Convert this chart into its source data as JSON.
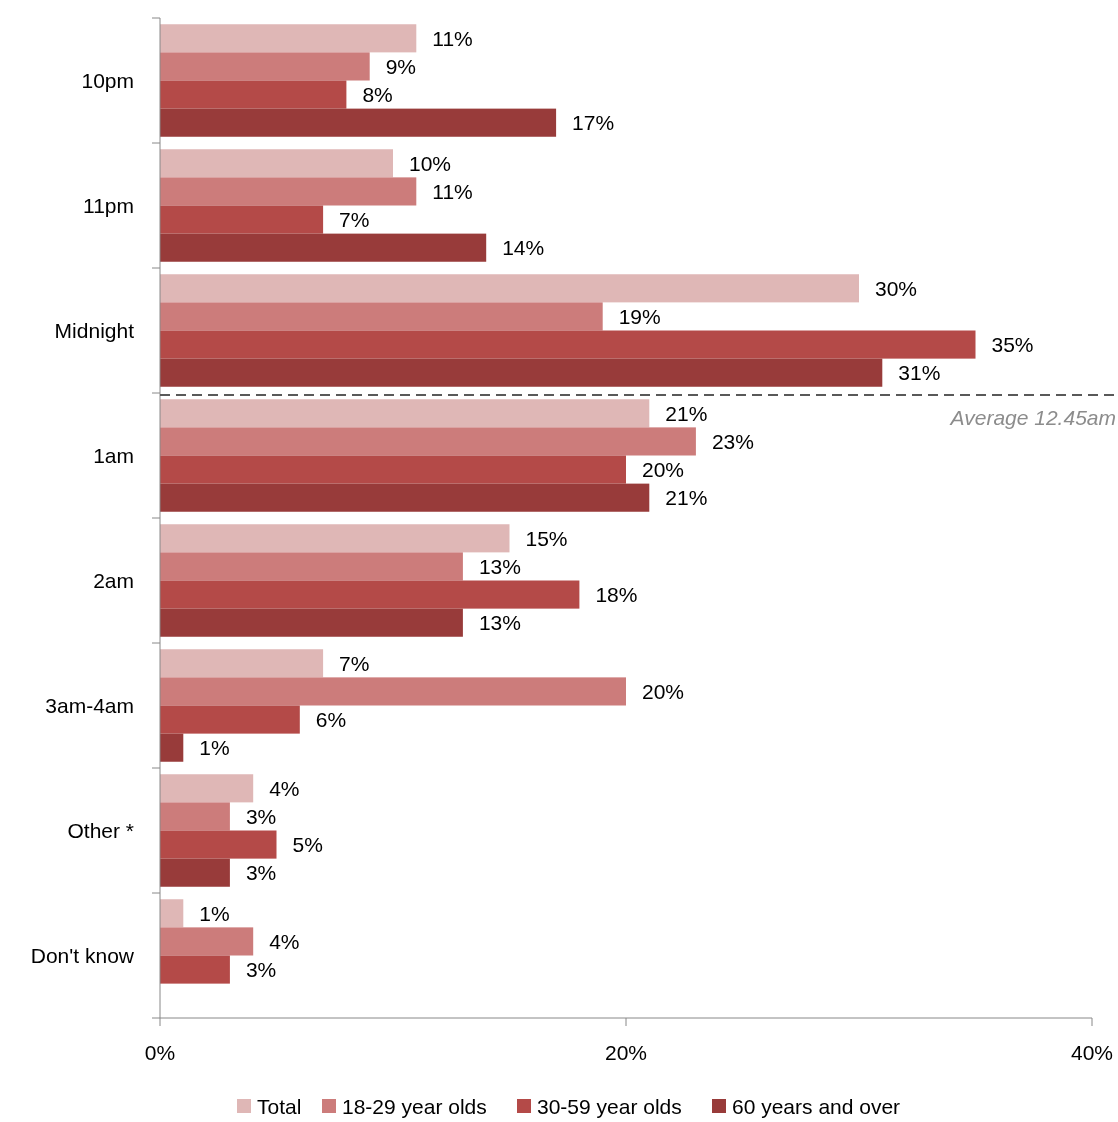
{
  "chart_data": {
    "type": "bar",
    "orientation": "horizontal",
    "categories": [
      "10pm",
      "11pm",
      "Midnight",
      "1am",
      "2am",
      "3am-4am",
      "Other *",
      "Don't know"
    ],
    "series": [
      {
        "name": "Total",
        "color": "#dfb7b6",
        "values": [
          11,
          10,
          30,
          21,
          15,
          7,
          4,
          1
        ],
        "value_labels": [
          "11%",
          "10%",
          "30%",
          "21%",
          "15%",
          "7%",
          "4%",
          "1%"
        ]
      },
      {
        "name": "18-29 year olds",
        "color": "#cc7c7b",
        "values": [
          9,
          11,
          19,
          23,
          13,
          20,
          3,
          4
        ],
        "value_labels": [
          "9%",
          "11%",
          "19%",
          "23%",
          "13%",
          "20%",
          "3%",
          "4%"
        ]
      },
      {
        "name": "30-59 year olds",
        "color": "#b44a48",
        "values": [
          8,
          7,
          35,
          20,
          18,
          6,
          5,
          3
        ],
        "value_labels": [
          "8%",
          "7%",
          "35%",
          "20%",
          "18%",
          "6%",
          "5%",
          "3%"
        ]
      },
      {
        "name": "60 years and over",
        "color": "#983b3a",
        "values": [
          17,
          14,
          31,
          21,
          13,
          1,
          3,
          null
        ],
        "value_labels": [
          "17%",
          "14%",
          "31%",
          "21%",
          "13%",
          "1%",
          "3%",
          null
        ]
      }
    ],
    "xlim": [
      0,
      40
    ],
    "xticks": [
      {
        "value": 0,
        "label": "0%"
      },
      {
        "value": 20,
        "label": "20%"
      },
      {
        "value": 40,
        "label": "40%"
      }
    ],
    "annotations": [
      "Average 12.45am"
    ],
    "legend": "bottom"
  }
}
